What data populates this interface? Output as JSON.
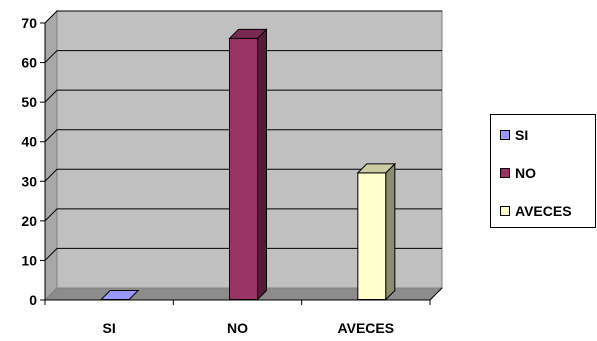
{
  "chart_data": {
    "type": "bar",
    "categories": [
      "SI",
      "NO",
      "AVECES"
    ],
    "series": [
      {
        "name": "SI",
        "values": [
          0,
          null,
          null
        ]
      },
      {
        "name": "NO",
        "values": [
          null,
          66,
          null
        ]
      },
      {
        "name": "AVECES",
        "values": [
          null,
          null,
          32
        ]
      }
    ],
    "ylim": [
      0,
      70
    ],
    "yticks": [
      0,
      10,
      20,
      30,
      40,
      50,
      60,
      70
    ],
    "grid": true,
    "legend_position": "right",
    "colors": {
      "SI": "#9999ff",
      "NO": "#993366",
      "AVECES": "#ffffcc",
      "plot_background": "#c0c0c0"
    }
  },
  "legend": {
    "items": [
      {
        "label": "SI"
      },
      {
        "label": "NO"
      },
      {
        "label": "AVECES"
      }
    ]
  }
}
